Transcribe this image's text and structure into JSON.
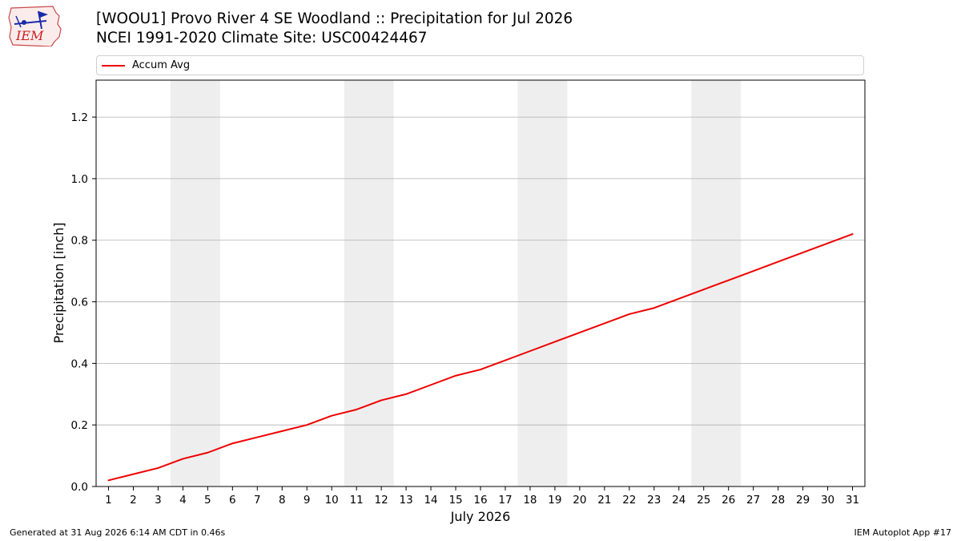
{
  "header": {
    "logo_text": "IEM",
    "title_line1": "[WOOU1] Provo River 4 SE Woodland :: Precipitation for Jul 2026",
    "title_line2": "NCEI 1991-2020 Climate Site: USC00424467"
  },
  "legend": {
    "label": "Accum Avg",
    "color": "#ee0000"
  },
  "footer": {
    "generated": "Generated at 31 Aug 2026 6:14 AM CDT in 0.46s",
    "app": "IEM Autoplot App #17"
  },
  "chart_data": {
    "type": "line",
    "xlabel": "July 2026",
    "ylabel": "Precipitation [inch]",
    "x": [
      1,
      2,
      3,
      4,
      5,
      6,
      7,
      8,
      9,
      10,
      11,
      12,
      13,
      14,
      15,
      16,
      17,
      18,
      19,
      20,
      21,
      22,
      23,
      24,
      25,
      26,
      27,
      28,
      29,
      30,
      31
    ],
    "xlim": [
      0.5,
      31.5
    ],
    "ylim": [
      0,
      1.32
    ],
    "yticks": [
      0.0,
      0.2,
      0.4,
      0.6,
      0.8,
      1.0,
      1.2
    ],
    "ytick_labels": [
      "0.0",
      "0.2",
      "0.4",
      "0.6",
      "0.8",
      "1.0",
      "1.2"
    ],
    "grid": "horizontal",
    "legend_position": "top",
    "weekend_shading": [
      [
        3.5,
        5.5
      ],
      [
        10.5,
        12.5
      ],
      [
        17.5,
        19.5
      ],
      [
        24.5,
        26.5
      ]
    ],
    "shading_color": "#eeeeee",
    "series": [
      {
        "name": "Accum Avg",
        "color": "#ee0000",
        "values": [
          0.02,
          0.04,
          0.06,
          0.09,
          0.11,
          0.14,
          0.16,
          0.18,
          0.2,
          0.23,
          0.25,
          0.28,
          0.3,
          0.33,
          0.36,
          0.38,
          0.41,
          0.44,
          0.47,
          0.5,
          0.53,
          0.56,
          0.58,
          0.61,
          0.64,
          0.67,
          0.7,
          0.73,
          0.76,
          0.79,
          0.82
        ]
      }
    ]
  }
}
